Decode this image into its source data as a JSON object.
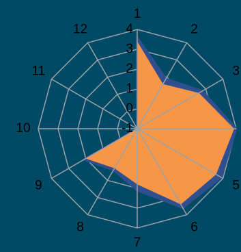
{
  "chart_data": {
    "type": "radar",
    "categories": [
      "1",
      "2",
      "3",
      "4",
      "5",
      "6",
      "7",
      "8",
      "9",
      "10",
      "11",
      "12"
    ],
    "series": [
      {
        "values": [
          3.6,
          1.9,
          2.8,
          4.0,
          3.9,
          3.6,
          2.1,
          1.4,
          2.1,
          -1.0,
          -1.0,
          -1.0
        ],
        "color": "#2f4f8f"
      },
      {
        "values": [
          3.4,
          1.6,
          2.6,
          3.9,
          3.6,
          3.4,
          1.8,
          1.3,
          2.0,
          -1.0,
          -1.0,
          -1.0
        ],
        "color": "#f79646"
      }
    ],
    "radial_ticks": [
      "-1",
      "0",
      "1",
      "2",
      "3",
      "4"
    ],
    "rlim": [
      -1,
      4
    ],
    "grid": true,
    "background": "#004a66",
    "grid_color": "#9aa3a8"
  }
}
